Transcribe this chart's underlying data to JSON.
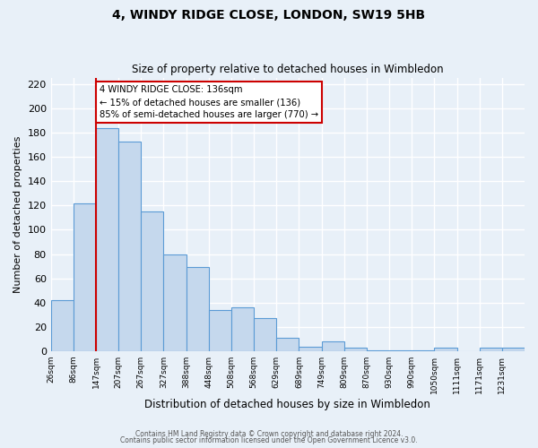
{
  "title": "4, WINDY RIDGE CLOSE, LONDON, SW19 5HB",
  "subtitle": "Size of property relative to detached houses in Wimbledon",
  "xlabel": "Distribution of detached houses by size in Wimbledon",
  "ylabel": "Number of detached properties",
  "bar_color": "#c5d8ed",
  "bar_edge_color": "#5b9bd5",
  "background_color": "#e8f0f8",
  "grid_color": "#ffffff",
  "bin_labels": [
    "26sqm",
    "86sqm",
    "147sqm",
    "207sqm",
    "267sqm",
    "327sqm",
    "388sqm",
    "448sqm",
    "508sqm",
    "568sqm",
    "629sqm",
    "689sqm",
    "749sqm",
    "809sqm",
    "870sqm",
    "930sqm",
    "990sqm",
    "1050sqm",
    "1111sqm",
    "1171sqm",
    "1231sqm"
  ],
  "bar_heights": [
    42,
    122,
    184,
    173,
    115,
    80,
    69,
    34,
    36,
    27,
    11,
    4,
    8,
    3,
    1,
    1,
    1,
    3,
    0,
    3,
    3
  ],
  "ylim": [
    0,
    225
  ],
  "yticks": [
    0,
    20,
    40,
    60,
    80,
    100,
    120,
    140,
    160,
    180,
    200,
    220
  ],
  "red_line_color": "#cc0000",
  "annotation_box_color": "#ffffff",
  "annotation_box_edge": "#cc0000",
  "property_line_label": "4 WINDY RIDGE CLOSE: 136sqm",
  "annotation_line1": "← 15% of detached houses are smaller (136)",
  "annotation_line2": "85% of semi-detached houses are larger (770) →",
  "footer1": "Contains HM Land Registry data © Crown copyright and database right 2024.",
  "footer2": "Contains public sector information licensed under the Open Government Licence v3.0."
}
